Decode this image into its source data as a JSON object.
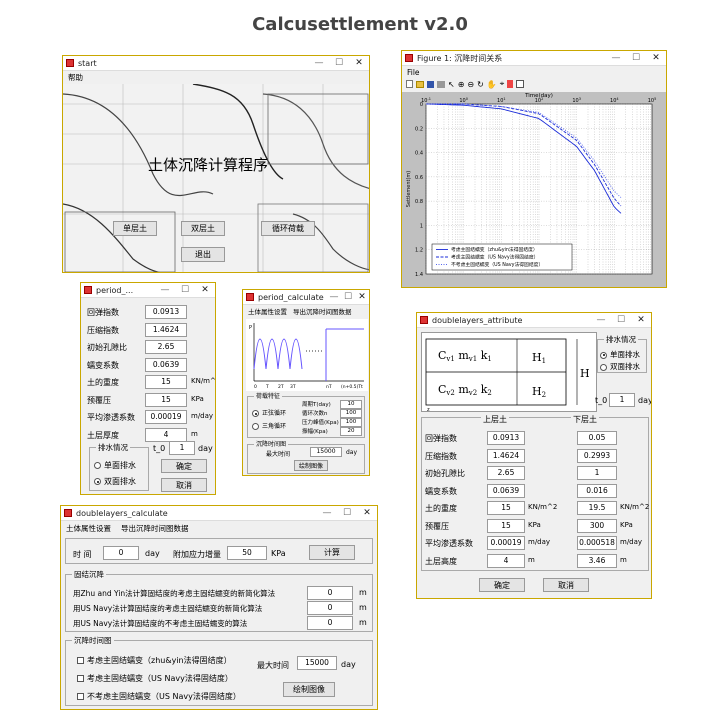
{
  "page_title": "Calcusettlement v2.0",
  "start": {
    "title": "start",
    "menu": "帮助",
    "heading": "土体沉降计算程序",
    "btn_single": "单层土",
    "btn_double": "双层土",
    "btn_cyclic": "循环荷载",
    "btn_exit": "退出"
  },
  "figure": {
    "title": "Figure 1: 沉降时间关系",
    "menu": "File",
    "xlabel": "Time(day)",
    "ylabel": "Settlement(m)",
    "xticks": [
      "10^-1",
      "10^0",
      "10^1",
      "10^2",
      "10^3",
      "10^4",
      "10^5"
    ],
    "yticks": [
      "0",
      "0.2",
      "0.4",
      "0.6",
      "0.8",
      "1",
      "1.2",
      "1.4"
    ],
    "legend": [
      "考虑主固结蠕变（zhu&yin法得固结度）",
      "考虑主固结蠕变（US Navy法得固结度）",
      "不考虑主固结蠕变（US Navy法得固结度）"
    ]
  },
  "chart_data": {
    "type": "line",
    "xlabel": "Time(day)",
    "ylabel": "Settlement(m)",
    "xscale": "log",
    "xlim": [
      0.1,
      100000
    ],
    "ylim": [
      0,
      1.4
    ],
    "y_inverted": true,
    "grid": true,
    "legend_position": "bottom-left",
    "series": [
      {
        "name": "考虑主固结蠕变（zhu&yin法得固结度）",
        "x": [
          0.1,
          1,
          10,
          100,
          1000,
          3000,
          10000,
          15000
        ],
        "y": [
          0.0,
          0.01,
          0.04,
          0.12,
          0.35,
          0.55,
          0.85,
          0.9
        ]
      },
      {
        "name": "考虑主固结蠕变（US Navy法得固结度）",
        "x": [
          0.1,
          1,
          10,
          100,
          1000,
          3000,
          10000,
          15000
        ],
        "y": [
          0.0,
          0.0,
          0.02,
          0.08,
          0.3,
          0.5,
          0.78,
          0.84
        ]
      },
      {
        "name": "不考虑主固结蠕变（US Navy法得固结度）",
        "x": [
          0.1,
          1,
          10,
          100,
          1000,
          3000,
          10000,
          15000
        ],
        "y": [
          0.0,
          0.0,
          0.02,
          0.07,
          0.28,
          0.47,
          0.72,
          0.77
        ]
      }
    ],
    "colors": [
      "#1a2bd8",
      "#1a2bd8",
      "#5566ee"
    ]
  },
  "period": {
    "title": "period_...",
    "rows": [
      {
        "label": "回弹指数",
        "value": "0.0913",
        "unit": ""
      },
      {
        "label": "压缩指数",
        "value": "1.4624",
        "unit": ""
      },
      {
        "label": "初始孔隙比",
        "value": "2.65",
        "unit": ""
      },
      {
        "label": "蠕变系数",
        "value": "0.0639",
        "unit": ""
      },
      {
        "label": "土的重度",
        "value": "15",
        "unit": "KN/m^2"
      },
      {
        "label": "预覆压",
        "value": "15",
        "unit": "KPa"
      },
      {
        "label": "平均渗透系数",
        "value": "0.00019",
        "unit": "m/day"
      },
      {
        "label": "土层厚度",
        "value": "4",
        "unit": "m"
      }
    ],
    "drain_label": "排水情况",
    "drain_single": "单面排水",
    "drain_double": "双面排水",
    "t0_label": "t_0",
    "t0_value": "1",
    "t0_unit": "day",
    "ok": "确定",
    "cancel": "取消"
  },
  "period_calc": {
    "title": "period_calculate",
    "menu1": "土体属性设置",
    "menu2": "导出沉降时间图数据",
    "axis_p": "P",
    "xticks": [
      "0",
      "T",
      "2T",
      "3T",
      "nT",
      "(n+0.5)T",
      "t"
    ],
    "load_label": "荷载特征",
    "opt_sq": "正弦循环",
    "opt_tri": "三角循环",
    "f1": "周期T(day)",
    "v1": "10",
    "f2": "循环次数n",
    "v2": "100",
    "f3": "压力峰值(Kpa)",
    "v3": "100",
    "f4": "振幅(Kpa)",
    "v4": "20",
    "time_group": "沉降时间图",
    "max_time": "最大时间",
    "max_time_val": "15000",
    "max_time_unit": "day",
    "draw": "绘制图像"
  },
  "dl_attr": {
    "title": "doublelayers_attribute",
    "drain_label": "排水情况",
    "drain_single": "单面排水",
    "drain_double": "双面排水",
    "t0_label": "t_0",
    "t0_value": "1",
    "t0_unit": "day",
    "upper": "上层土",
    "lower": "下层土",
    "rows": [
      {
        "label": "回弹指数",
        "v1": "0.0913",
        "u1": "",
        "v2": "0.05",
        "u2": ""
      },
      {
        "label": "压缩指数",
        "v1": "1.4624",
        "u1": "",
        "v2": "0.2993",
        "u2": ""
      },
      {
        "label": "初始孔隙比",
        "v1": "2.65",
        "u1": "",
        "v2": "1",
        "u2": ""
      },
      {
        "label": "蠕变系数",
        "v1": "0.0639",
        "u1": "",
        "v2": "0.016",
        "u2": ""
      },
      {
        "label": "土的重度",
        "v1": "15",
        "u1": "KN/m^2",
        "v2": "19.5",
        "u2": "KN/m^2"
      },
      {
        "label": "预覆压",
        "v1": "15",
        "u1": "KPa",
        "v2": "300",
        "u2": "KPa"
      },
      {
        "label": "平均渗透系数",
        "v1": "0.00019",
        "u1": "m/day",
        "v2": "0.000518",
        "u2": "m/day"
      },
      {
        "label": "土层高度",
        "v1": "4",
        "u1": "m",
        "v2": "3.46",
        "u2": "m"
      }
    ],
    "ok": "确定",
    "cancel": "取消",
    "diag_h1": "H",
    "diag_h1_sub": "1",
    "diag_h2": "H",
    "diag_h2_sub": "2",
    "diag_h": "H",
    "diag_z": "z"
  },
  "dl_calc": {
    "title": "doublelayers_calculate",
    "menu1": "土体属性设置",
    "menu2": "导出沉降时间图数据",
    "time_label": "时 间",
    "time_val": "0",
    "time_unit": "day",
    "stress_label": "附加应力增量",
    "stress_val": "50",
    "stress_unit": "KPa",
    "calc_btn": "计算",
    "consol_label": "固结沉降",
    "lines": [
      {
        "text": "用Zhu and Yin法计算固结度的考虑主固结蠕变的新简化算法",
        "value": "0",
        "unit": "m"
      },
      {
        "text": "用US Navy法计算固结度的考虑主固结蠕变的新简化算法",
        "value": "0",
        "unit": "m"
      },
      {
        "text": "用US Navy法计算固结度的不考虑主固结蠕变的算法",
        "value": "0",
        "unit": "m"
      }
    ],
    "time_group": "沉降时间图",
    "chk1": "考虑主固结蠕变（zhu&yin法得固结度）",
    "chk2": "考虑主固结蠕变（US Navy法得固结度）",
    "chk3": "不考虑主固结蠕变（US Navy法得固结度）",
    "max_time": "最大时间",
    "max_time_val": "15000",
    "max_time_unit": "day",
    "draw": "绘制图像"
  }
}
